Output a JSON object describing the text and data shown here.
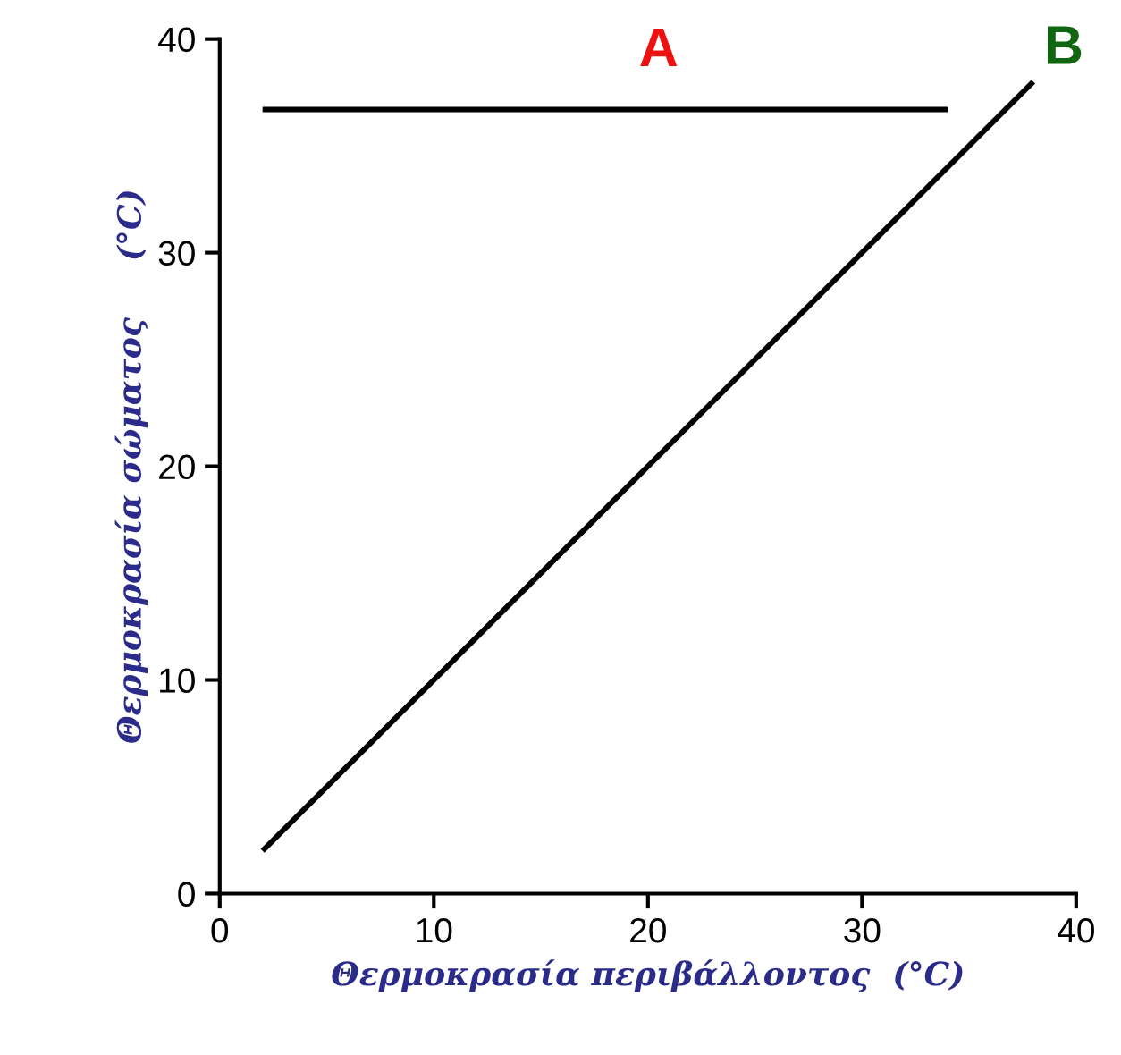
{
  "chart_data": {
    "type": "line",
    "xlabel": "Θερμοκρασία περιβάλλοντος  (°C)",
    "ylabel": "Θερμοκρασία σώματος     (°C)",
    "xlim": [
      0,
      40
    ],
    "ylim": [
      0,
      40
    ],
    "xticks": [
      0,
      10,
      20,
      30,
      40
    ],
    "yticks": [
      0,
      10,
      20,
      30,
      40
    ],
    "grid": false,
    "legend": false,
    "marker": "none",
    "line_style": "solid",
    "series": [
      {
        "name": "A",
        "color": "#000000",
        "x": [
          2,
          34
        ],
        "values": [
          36.7,
          36.7
        ]
      },
      {
        "name": "B",
        "color": "#000000",
        "x": [
          2,
          38
        ],
        "values": [
          2,
          38
        ]
      }
    ]
  }
}
